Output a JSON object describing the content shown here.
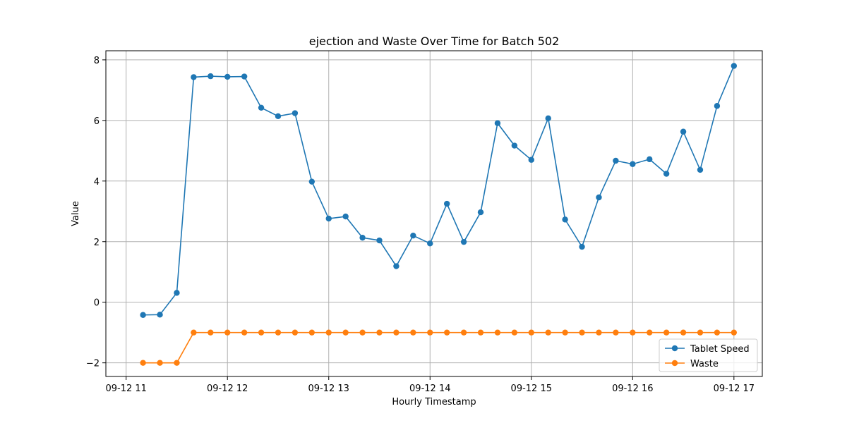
{
  "chart_data": {
    "type": "line",
    "title": "ejection and Waste Over Time for Batch 502",
    "xlabel": "Hourly Timestamp",
    "ylabel": "Value",
    "x_unit": "hour",
    "x_start": "2024-09-12 11:10",
    "x_step_minutes": 10,
    "x_ticks": [
      {
        "label": "09-12 11",
        "hour": 11
      },
      {
        "label": "09-12 12",
        "hour": 12
      },
      {
        "label": "09-12 13",
        "hour": 13
      },
      {
        "label": "09-12 14",
        "hour": 14
      },
      {
        "label": "09-12 15",
        "hour": 15
      },
      {
        "label": "09-12 16",
        "hour": 16
      },
      {
        "label": "09-12 17",
        "hour": 17
      }
    ],
    "xlim": [
      10.8,
      17.28
    ],
    "ylim": [
      -2.45,
      8.3
    ],
    "y_ticks": [
      -2,
      0,
      2,
      4,
      6,
      8
    ],
    "y_tick_labels": [
      "−2",
      "0",
      "2",
      "4",
      "6",
      "8"
    ],
    "grid": true,
    "legend_position": "lower-right",
    "series": [
      {
        "name": "Tablet Speed",
        "color": "#1f77b4",
        "values": [
          -0.42,
          -0.41,
          0.31,
          7.43,
          7.46,
          7.44,
          7.45,
          6.42,
          6.14,
          6.24,
          3.98,
          2.76,
          2.83,
          2.13,
          2.04,
          1.19,
          2.2,
          1.94,
          3.25,
          1.99,
          2.97,
          5.91,
          5.17,
          4.7,
          6.07,
          2.73,
          1.83,
          3.46,
          4.67,
          4.56,
          4.72,
          4.24,
          5.63,
          4.37,
          6.48,
          7.8
        ]
      },
      {
        "name": "Waste",
        "color": "#ff7f0e",
        "values": [
          -2,
          -2,
          -2,
          -1,
          -1,
          -1,
          -1,
          -1,
          -1,
          -1,
          -1,
          -1,
          -1,
          -1,
          -1,
          -1,
          -1,
          -1,
          -1,
          -1,
          -1,
          -1,
          -1,
          -1,
          -1,
          -1,
          -1,
          -1,
          -1,
          -1,
          -1,
          -1,
          -1,
          -1,
          -1,
          -1
        ]
      }
    ]
  }
}
